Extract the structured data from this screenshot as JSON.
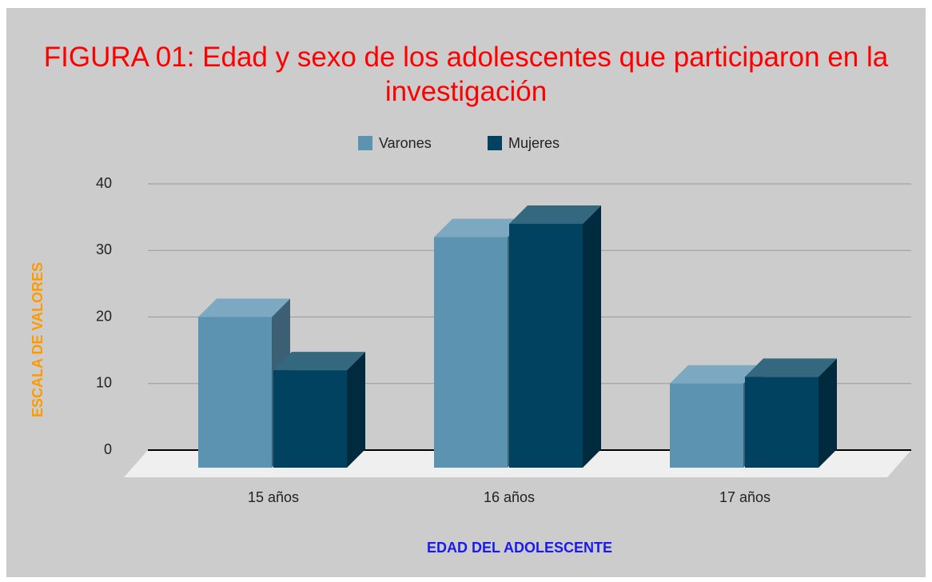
{
  "chart_data": {
    "type": "bar3d",
    "title": "FIGURA 01:  Edad y sexo de los adolescentes que participaron en la investigación",
    "xlabel": "EDAD DEL ADOLESCENTE",
    "ylabel": "ESCALA DE VALORES",
    "categories": [
      "15 años",
      "16 años",
      "17 años"
    ],
    "series": [
      {
        "name": "Varones",
        "color": "#5b93b1",
        "values": [
          20,
          32,
          10
        ]
      },
      {
        "name": "Mujeres",
        "color": "#00425f",
        "values": [
          12,
          34,
          11
        ]
      }
    ],
    "ylim": [
      0,
      40
    ],
    "yticks": [
      0,
      10,
      20,
      30,
      40
    ],
    "grid": true,
    "legend": "top"
  }
}
